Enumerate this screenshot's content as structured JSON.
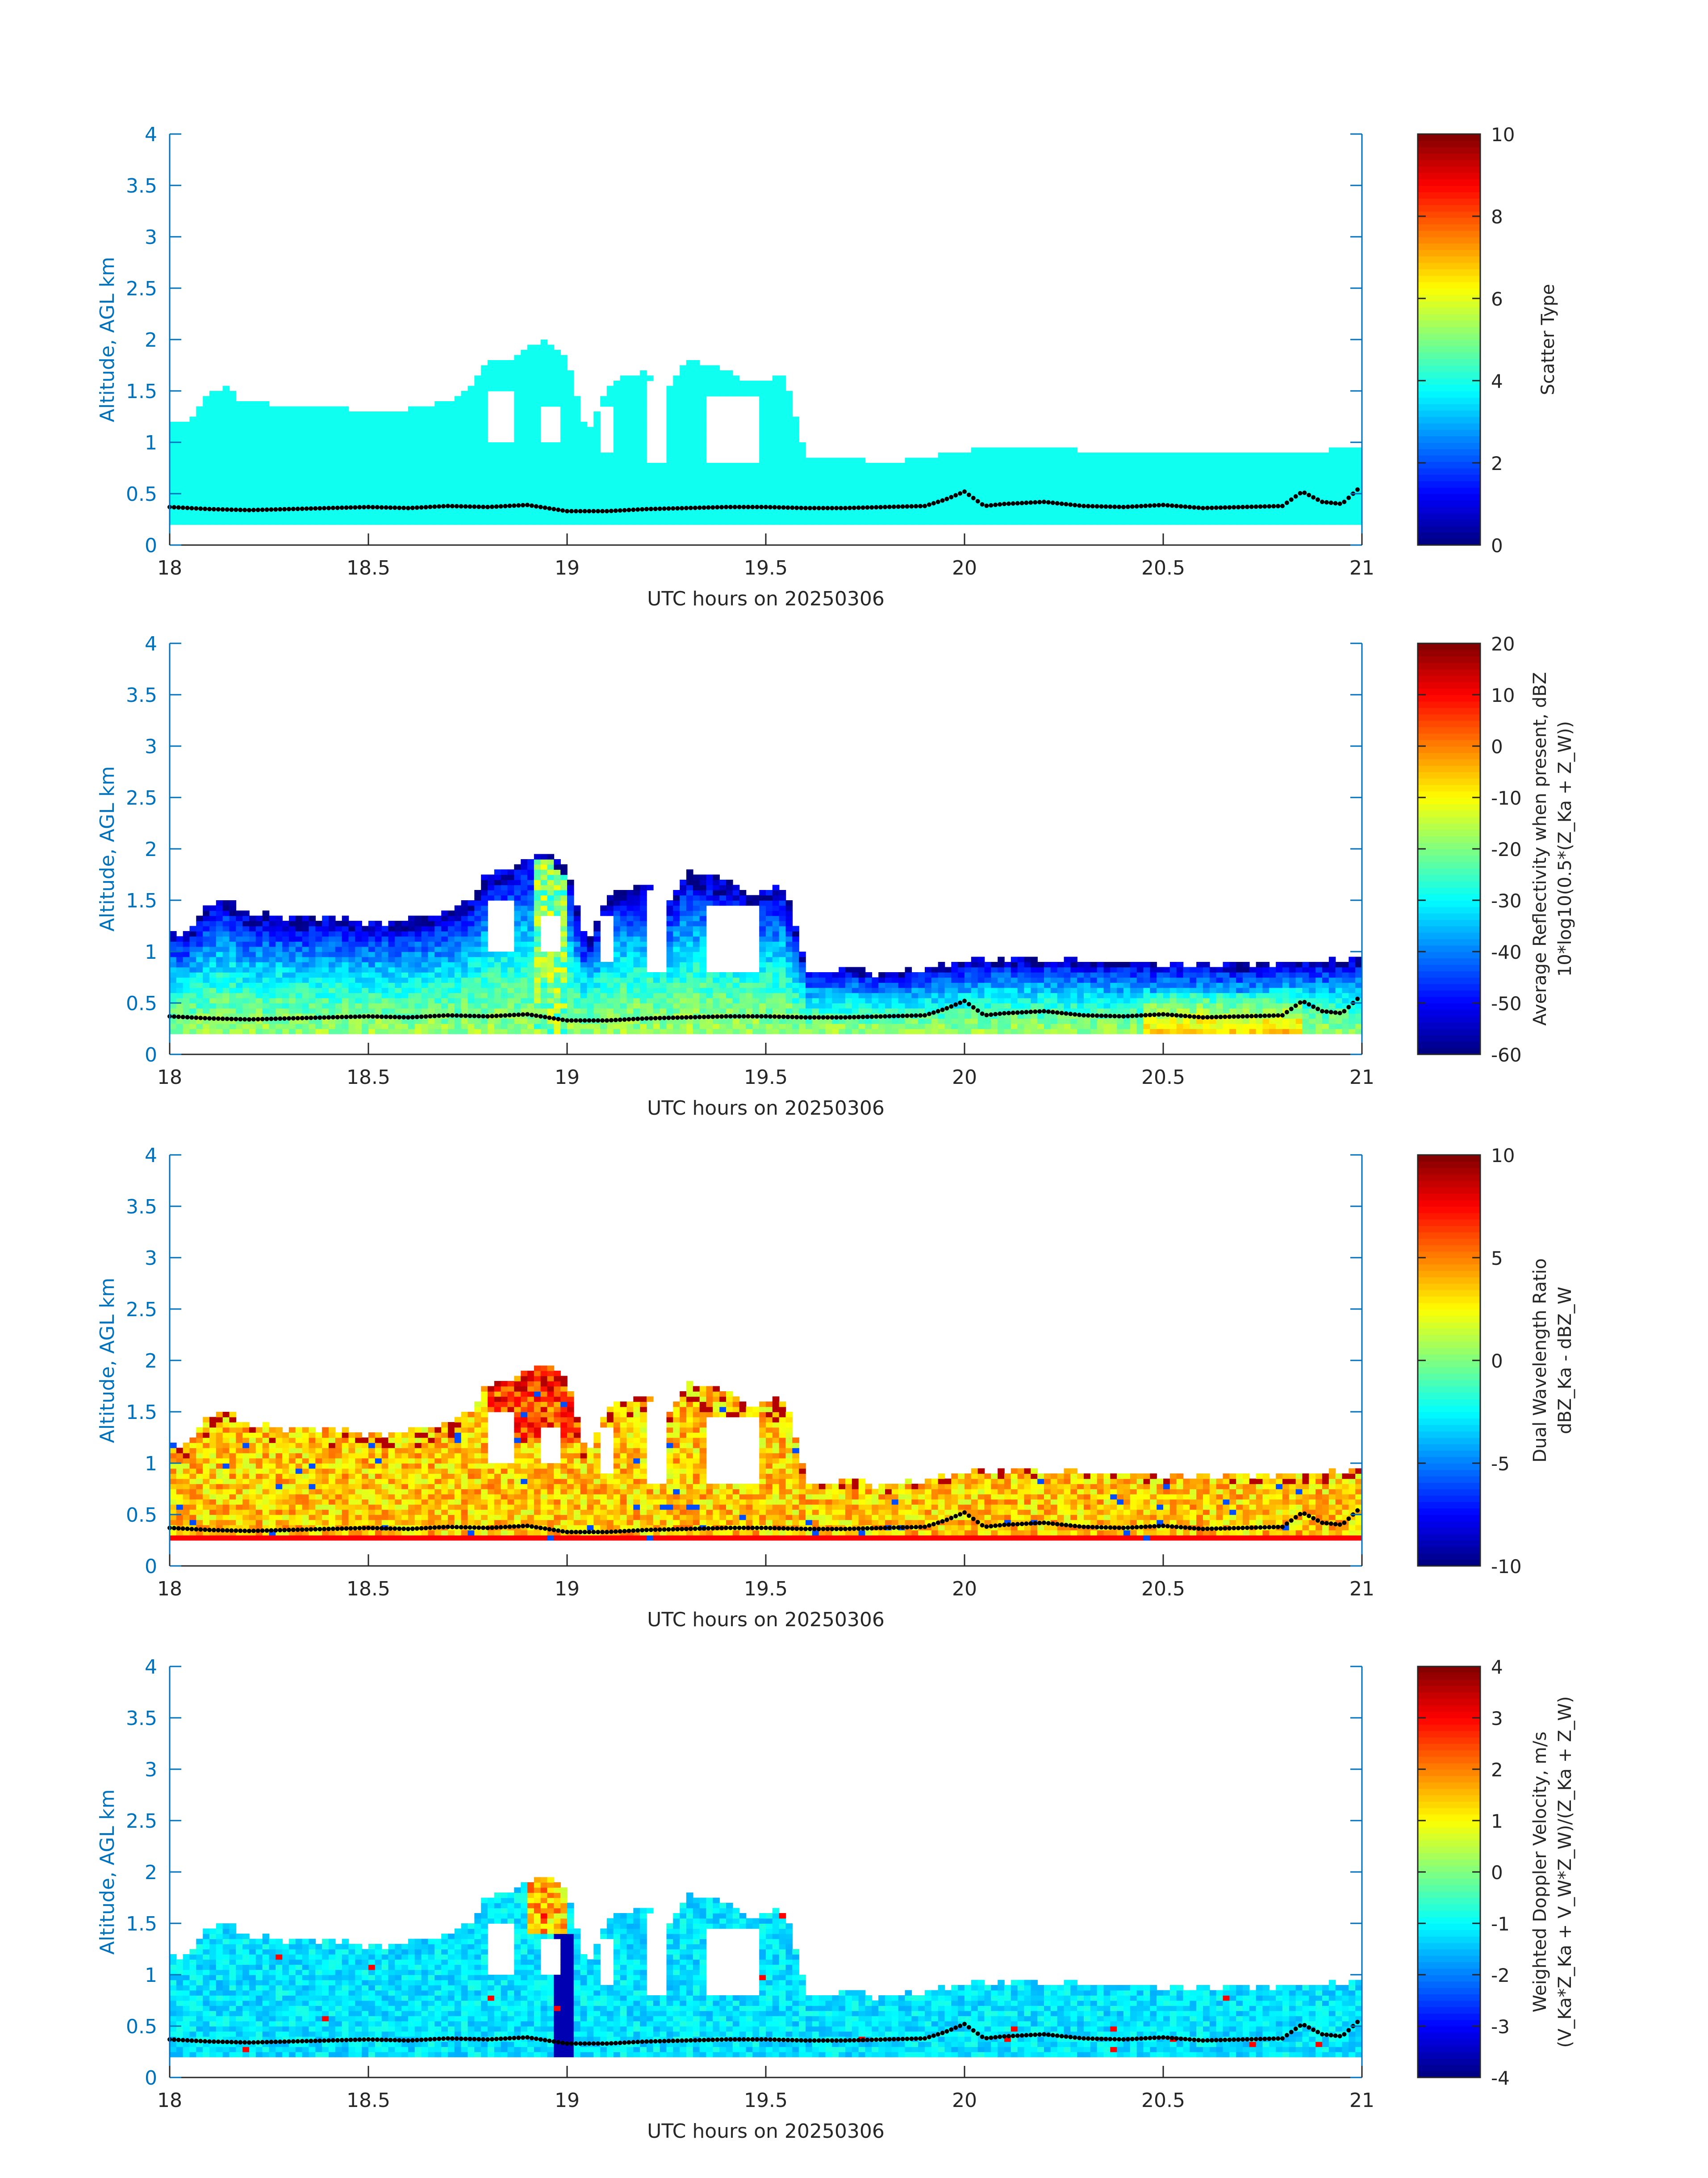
{
  "figure": {
    "xlabel": "UTC hours on 20250306",
    "ylabel": "Altitude, AGL km",
    "xticks": [
      "18",
      "18.5",
      "19",
      "19.5",
      "20",
      "20.5",
      "21"
    ],
    "yticks": [
      "0",
      "0.5",
      "1",
      "1.5",
      "2",
      "2.5",
      "3",
      "3.5",
      "4"
    ],
    "axis_color": "#0072bd",
    "label_color": "#262626"
  },
  "chart_data": [
    {
      "type": "heatmap",
      "title": "",
      "xlabel": "UTC hours on 20250306",
      "ylabel": "Altitude, AGL km",
      "xlim": [
        18,
        21
      ],
      "ylim": [
        0,
        4
      ],
      "colorbar": {
        "label_lines": [
          "Scatter Type"
        ],
        "clim": [
          0,
          10
        ],
        "ticks": [
          "0",
          "2",
          "4",
          "6",
          "8",
          "10"
        ],
        "colormap": "jet"
      },
      "field": "scatter_type",
      "value_inside_echo": 3.9,
      "echo_base_km": 0.2,
      "echo_top_km": [
        [
          18.0,
          1.2
        ],
        [
          18.05,
          1.2
        ],
        [
          18.1,
          1.5
        ],
        [
          18.15,
          1.55
        ],
        [
          18.18,
          1.38
        ],
        [
          18.25,
          1.38
        ],
        [
          18.3,
          1.33
        ],
        [
          18.4,
          1.35
        ],
        [
          18.5,
          1.3
        ],
        [
          18.6,
          1.32
        ],
        [
          18.7,
          1.4
        ],
        [
          18.75,
          1.5
        ],
        [
          18.8,
          1.78
        ],
        [
          18.85,
          1.8
        ],
        [
          18.9,
          1.95
        ],
        [
          18.95,
          2.0
        ],
        [
          19.0,
          1.82
        ],
        [
          19.05,
          1.05
        ],
        [
          19.1,
          1.55
        ],
        [
          19.15,
          1.65
        ],
        [
          19.2,
          1.7
        ],
        [
          19.25,
          1.5
        ],
        [
          19.3,
          1.8
        ],
        [
          19.35,
          1.75
        ],
        [
          19.4,
          1.7
        ],
        [
          19.45,
          1.6
        ],
        [
          19.5,
          1.62
        ],
        [
          19.55,
          1.65
        ],
        [
          19.6,
          0.85
        ],
        [
          19.7,
          0.85
        ],
        [
          19.8,
          0.8
        ],
        [
          19.9,
          0.85
        ],
        [
          20.0,
          0.92
        ],
        [
          20.1,
          0.95
        ],
        [
          20.2,
          0.95
        ],
        [
          20.3,
          0.92
        ],
        [
          20.4,
          0.92
        ],
        [
          20.5,
          0.9
        ],
        [
          20.6,
          0.9
        ],
        [
          20.7,
          0.88
        ],
        [
          20.8,
          0.92
        ],
        [
          20.9,
          0.92
        ],
        [
          21.0,
          0.95
        ]
      ],
      "gaps_km": [
        [
          18.8,
          18.87,
          1.0,
          1.5
        ],
        [
          18.93,
          18.98,
          1.0,
          1.35
        ],
        [
          19.08,
          19.12,
          0.9,
          1.35
        ],
        [
          19.2,
          19.25,
          0.78,
          1.6
        ],
        [
          19.35,
          19.48,
          0.78,
          1.45
        ]
      ],
      "overlay_series": "cloud base (black dots)",
      "overlay_km": [
        [
          18.0,
          0.37
        ],
        [
          18.1,
          0.35
        ],
        [
          18.2,
          0.34
        ],
        [
          18.3,
          0.35
        ],
        [
          18.4,
          0.36
        ],
        [
          18.5,
          0.37
        ],
        [
          18.6,
          0.36
        ],
        [
          18.7,
          0.38
        ],
        [
          18.8,
          0.37
        ],
        [
          18.9,
          0.39
        ],
        [
          19.0,
          0.33
        ],
        [
          19.1,
          0.33
        ],
        [
          19.2,
          0.35
        ],
        [
          19.3,
          0.36
        ],
        [
          19.4,
          0.37
        ],
        [
          19.5,
          0.37
        ],
        [
          19.6,
          0.36
        ],
        [
          19.7,
          0.36
        ],
        [
          19.8,
          0.37
        ],
        [
          19.9,
          0.38
        ],
        [
          19.95,
          0.44
        ],
        [
          20.0,
          0.52
        ],
        [
          20.05,
          0.38
        ],
        [
          20.1,
          0.4
        ],
        [
          20.2,
          0.42
        ],
        [
          20.3,
          0.38
        ],
        [
          20.4,
          0.37
        ],
        [
          20.5,
          0.39
        ],
        [
          20.6,
          0.36
        ],
        [
          20.7,
          0.37
        ],
        [
          20.8,
          0.38
        ],
        [
          20.85,
          0.52
        ],
        [
          20.9,
          0.42
        ],
        [
          20.95,
          0.4
        ],
        [
          21.0,
          0.58
        ]
      ]
    },
    {
      "type": "heatmap",
      "title": "",
      "xlabel": "UTC hours on 20250306",
      "ylabel": "Altitude, AGL km",
      "xlim": [
        18,
        21
      ],
      "ylim": [
        0,
        4
      ],
      "colorbar": {
        "label_lines": [
          "Average Reflectivity when present, dBZ",
          "10*log10(0.5*(Z_Ka + Z_W))"
        ],
        "clim": [
          -60,
          20
        ],
        "ticks": [
          "-60",
          "-50",
          "-40",
          "-30",
          "-20",
          "-10",
          "0",
          "10",
          "20"
        ],
        "colormap": "jet"
      },
      "field": "reflectivity",
      "value_at_top": -55,
      "value_at_mid": -30,
      "value_near_base": -18,
      "peak_value": 8
    },
    {
      "type": "heatmap",
      "title": "",
      "xlabel": "UTC hours on 20250306",
      "ylabel": "Altitude, AGL km",
      "xlim": [
        18,
        21
      ],
      "ylim": [
        0,
        4
      ],
      "colorbar": {
        "label_lines": [
          "Dual Wavelength Ratio",
          "dBZ_Ka - dBZ_W"
        ],
        "clim": [
          -10,
          10
        ],
        "ticks": [
          "-10",
          "-5",
          "0",
          "5",
          "10"
        ],
        "colormap": "jet"
      },
      "field": "dual_wavelength_ratio",
      "typical_value": 3.5,
      "max_value": 9,
      "min_value": -6
    },
    {
      "type": "heatmap",
      "title": "",
      "xlabel": "UTC hours on 20250306",
      "ylabel": "Altitude, AGL km",
      "xlim": [
        18,
        21
      ],
      "ylim": [
        0,
        4
      ],
      "colorbar": {
        "label_lines": [
          "Weighted Doppler Velocity, m/s",
          "(V_Ka*Z_Ka + V_W*Z_W)/(Z_Ka + Z_W)"
        ],
        "clim": [
          -4,
          4
        ],
        "ticks": [
          "-4",
          "-3",
          "-2",
          "-1",
          "0",
          "1",
          "2",
          "3",
          "4"
        ],
        "colormap": "jet"
      },
      "field": "doppler_velocity",
      "typical_value": -1.2,
      "min_value": -3.6,
      "max_value": 3
    }
  ]
}
